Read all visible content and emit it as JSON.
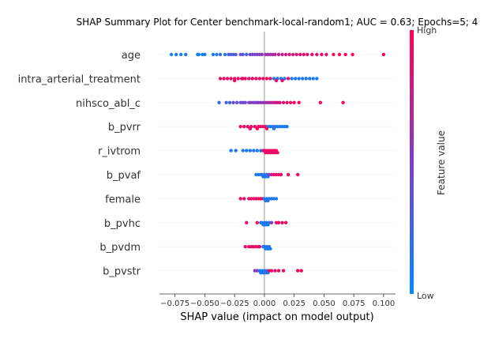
{
  "chart_data": {
    "type": "scatter",
    "title": "SHAP Summary Plot for Center benchmark-local-random1; AUC = 0.63; Epochs=5; 4",
    "xlabel": "SHAP value (impact on model output)",
    "xlim": [
      -0.088,
      0.11
    ],
    "xticks": [
      {
        "v": -0.075,
        "label": "−0.075"
      },
      {
        "v": -0.05,
        "label": "−0.050"
      },
      {
        "v": -0.025,
        "label": "−0.025"
      },
      {
        "v": 0.0,
        "label": "0.000"
      },
      {
        "v": 0.025,
        "label": "0.025"
      },
      {
        "v": 0.05,
        "label": "0.050"
      },
      {
        "v": 0.075,
        "label": "0.075"
      },
      {
        "v": 0.1,
        "label": "0.100"
      }
    ],
    "colorbar": {
      "title": "Feature value",
      "high_label": "High",
      "low_label": "Low",
      "low_color": "#008bfb",
      "high_color": "#ff0052"
    },
    "features": [
      {
        "name": "age",
        "points": [
          [
            -0.078,
            0.05
          ],
          [
            -0.074,
            0.1
          ],
          [
            -0.07,
            0.05
          ],
          [
            -0.066,
            0.1
          ],
          [
            -0.056,
            0.05
          ],
          [
            -0.055,
            0.05
          ],
          [
            -0.052,
            0.1
          ],
          [
            -0.05,
            0.05
          ],
          [
            -0.043,
            0.1
          ],
          [
            -0.04,
            0.1
          ],
          [
            -0.037,
            0.2
          ],
          [
            -0.033,
            0.1
          ],
          [
            -0.03,
            0.35
          ],
          [
            -0.028,
            0.3
          ],
          [
            -0.026,
            0.25
          ],
          [
            -0.024,
            0.4
          ],
          [
            -0.02,
            0.3
          ],
          [
            -0.018,
            0.4
          ],
          [
            -0.015,
            0.25
          ],
          [
            -0.012,
            0.45
          ],
          [
            -0.01,
            0.5
          ],
          [
            -0.008,
            0.4
          ],
          [
            -0.006,
            0.55
          ],
          [
            -0.004,
            0.45
          ],
          [
            -0.002,
            0.6
          ],
          [
            0.001,
            0.55
          ],
          [
            0.003,
            0.7
          ],
          [
            0.005,
            0.6
          ],
          [
            0.007,
            0.65
          ],
          [
            0.009,
            0.75
          ],
          [
            0.012,
            0.7
          ],
          [
            0.015,
            0.8
          ],
          [
            0.018,
            0.75
          ],
          [
            0.021,
            0.85
          ],
          [
            0.024,
            0.8
          ],
          [
            0.027,
            0.85
          ],
          [
            0.03,
            0.9
          ],
          [
            0.033,
            0.85
          ],
          [
            0.036,
            0.9
          ],
          [
            0.04,
            0.95
          ],
          [
            0.044,
            0.9
          ],
          [
            0.048,
            0.95
          ],
          [
            0.052,
            0.9
          ],
          [
            0.058,
            0.95
          ],
          [
            0.063,
            1.0
          ],
          [
            0.068,
            0.95
          ],
          [
            0.074,
            1.0
          ],
          [
            0.1,
            1.0
          ]
        ]
      },
      {
        "name": "intra_arterial_treatment",
        "points": [
          [
            -0.037,
            0.9
          ],
          [
            -0.034,
            0.95
          ],
          [
            -0.031,
            0.9
          ],
          [
            -0.028,
            0.95
          ],
          [
            -0.025,
            0.9
          ],
          [
            -0.022,
            0.95
          ],
          [
            -0.019,
            0.9
          ],
          [
            -0.016,
            0.95
          ],
          [
            -0.013,
            0.9
          ],
          [
            -0.01,
            0.95
          ],
          [
            -0.007,
            0.9
          ],
          [
            -0.004,
            0.95
          ],
          [
            -0.001,
            0.9
          ],
          [
            0.002,
            0.95
          ],
          [
            0.005,
            0.9
          ],
          [
            0.008,
            0.1
          ],
          [
            0.011,
            0.15
          ],
          [
            0.014,
            0.1
          ],
          [
            0.017,
            0.15
          ],
          [
            0.02,
            0.95
          ],
          [
            0.023,
            0.1
          ],
          [
            0.026,
            0.1
          ],
          [
            0.029,
            0.15
          ],
          [
            0.032,
            0.1
          ],
          [
            0.035,
            0.1
          ],
          [
            0.038,
            0.15
          ],
          [
            0.041,
            0.1
          ],
          [
            0.044,
            0.1
          ],
          [
            -0.025,
            0.95
          ],
          [
            -0.018,
            0.9
          ],
          [
            0.015,
            0.9
          ],
          [
            0.01,
            0.9
          ]
        ]
      },
      {
        "name": "nihsco_abl_c",
        "points": [
          [
            -0.038,
            0.2
          ],
          [
            -0.032,
            0.3
          ],
          [
            -0.029,
            0.25
          ],
          [
            -0.026,
            0.4
          ],
          [
            -0.023,
            0.35
          ],
          [
            -0.02,
            0.45
          ],
          [
            -0.018,
            0.5
          ],
          [
            -0.016,
            0.4
          ],
          [
            -0.013,
            0.5
          ],
          [
            -0.011,
            0.55
          ],
          [
            -0.009,
            0.45
          ],
          [
            -0.007,
            0.5
          ],
          [
            -0.005,
            0.6
          ],
          [
            -0.003,
            0.5
          ],
          [
            -0.001,
            0.55
          ],
          [
            0.001,
            0.6
          ],
          [
            0.003,
            0.65
          ],
          [
            0.005,
            0.7
          ],
          [
            0.007,
            0.75
          ],
          [
            0.009,
            0.8
          ],
          [
            0.011,
            0.85
          ],
          [
            0.013,
            0.8
          ],
          [
            0.016,
            0.9
          ],
          [
            0.019,
            0.85
          ],
          [
            0.022,
            0.95
          ],
          [
            0.025,
            0.9
          ],
          [
            0.029,
            0.95
          ],
          [
            0.047,
            1.0
          ],
          [
            0.066,
            1.0
          ]
        ]
      },
      {
        "name": "b_pvrr",
        "points": [
          [
            -0.02,
            0.9
          ],
          [
            -0.017,
            0.95
          ],
          [
            -0.014,
            0.9
          ],
          [
            -0.011,
            0.95
          ],
          [
            -0.008,
            0.9
          ],
          [
            -0.005,
            0.95
          ],
          [
            -0.003,
            0.9
          ],
          [
            -0.001,
            0.95
          ],
          [
            0.001,
            0.9
          ],
          [
            0.003,
            0.1
          ],
          [
            0.005,
            0.15
          ],
          [
            0.007,
            0.1
          ],
          [
            0.009,
            0.1
          ],
          [
            0.011,
            0.15
          ],
          [
            0.013,
            0.1
          ],
          [
            0.015,
            0.1
          ],
          [
            0.017,
            0.1
          ],
          [
            0.019,
            0.15
          ],
          [
            -0.012,
            0.9
          ],
          [
            -0.006,
            0.95
          ],
          [
            0.002,
            0.95
          ],
          [
            0.008,
            0.1
          ]
        ]
      },
      {
        "name": "r_ivtrom",
        "points": [
          [
            -0.028,
            0.1
          ],
          [
            -0.024,
            0.15
          ],
          [
            -0.018,
            0.1
          ],
          [
            -0.015,
            0.15
          ],
          [
            -0.012,
            0.1
          ],
          [
            -0.009,
            0.15
          ],
          [
            -0.006,
            0.1
          ],
          [
            -0.003,
            0.15
          ],
          [
            -0.001,
            0.9
          ],
          [
            0.0,
            0.95
          ],
          [
            0.001,
            0.9
          ],
          [
            0.002,
            0.95
          ],
          [
            0.003,
            0.9
          ],
          [
            0.004,
            0.95
          ],
          [
            0.005,
            0.9
          ],
          [
            0.006,
            0.95
          ],
          [
            0.007,
            0.9
          ],
          [
            0.008,
            0.95
          ],
          [
            0.009,
            0.9
          ],
          [
            0.01,
            0.95
          ],
          [
            0.011,
            0.9
          ]
        ]
      },
      {
        "name": "b_pvaf",
        "points": [
          [
            -0.007,
            0.1
          ],
          [
            -0.005,
            0.15
          ],
          [
            -0.003,
            0.1
          ],
          [
            -0.002,
            0.15
          ],
          [
            -0.001,
            0.1
          ],
          [
            0.0,
            0.15
          ],
          [
            0.001,
            0.1
          ],
          [
            0.002,
            0.15
          ],
          [
            0.003,
            0.1
          ],
          [
            0.004,
            0.5
          ],
          [
            0.006,
            0.8
          ],
          [
            0.008,
            0.9
          ],
          [
            0.01,
            0.9
          ],
          [
            0.012,
            0.95
          ],
          [
            0.014,
            0.9
          ],
          [
            0.02,
            0.95
          ],
          [
            0.028,
            1.0
          ]
        ]
      },
      {
        "name": "female",
        "points": [
          [
            -0.02,
            0.9
          ],
          [
            -0.017,
            0.95
          ],
          [
            -0.013,
            0.9
          ],
          [
            -0.011,
            0.95
          ],
          [
            -0.009,
            0.9
          ],
          [
            -0.007,
            0.95
          ],
          [
            -0.005,
            0.9
          ],
          [
            -0.003,
            0.95
          ],
          [
            -0.001,
            0.9
          ],
          [
            0.0,
            0.1
          ],
          [
            0.001,
            0.15
          ],
          [
            0.002,
            0.1
          ],
          [
            0.003,
            0.15
          ],
          [
            0.004,
            0.1
          ],
          [
            0.006,
            0.15
          ],
          [
            0.008,
            0.1
          ],
          [
            0.01,
            0.1
          ]
        ]
      },
      {
        "name": "b_pvhc",
        "points": [
          [
            -0.015,
            0.9
          ],
          [
            -0.006,
            0.95
          ],
          [
            -0.003,
            0.1
          ],
          [
            -0.002,
            0.15
          ],
          [
            -0.001,
            0.1
          ],
          [
            0.0,
            0.15
          ],
          [
            0.001,
            0.1
          ],
          [
            0.002,
            0.15
          ],
          [
            0.003,
            0.1
          ],
          [
            0.004,
            0.15
          ],
          [
            0.006,
            0.5
          ],
          [
            0.01,
            0.9
          ],
          [
            0.012,
            0.95
          ],
          [
            0.015,
            0.9
          ],
          [
            0.018,
            0.95
          ]
        ]
      },
      {
        "name": "b_pvdm",
        "points": [
          [
            -0.016,
            0.9
          ],
          [
            -0.013,
            0.95
          ],
          [
            -0.011,
            0.9
          ],
          [
            -0.009,
            0.95
          ],
          [
            -0.007,
            0.9
          ],
          [
            -0.005,
            0.95
          ],
          [
            -0.004,
            0.9
          ],
          [
            -0.001,
            0.1
          ],
          [
            0.0,
            0.15
          ],
          [
            0.001,
            0.1
          ],
          [
            0.002,
            0.15
          ],
          [
            0.003,
            0.1
          ],
          [
            0.004,
            0.15
          ],
          [
            0.005,
            0.1
          ]
        ]
      },
      {
        "name": "b_pvstr",
        "points": [
          [
            -0.008,
            0.5
          ],
          [
            -0.006,
            0.6
          ],
          [
            -0.004,
            0.1
          ],
          [
            -0.003,
            0.15
          ],
          [
            -0.002,
            0.1
          ],
          [
            -0.001,
            0.15
          ],
          [
            0.0,
            0.1
          ],
          [
            0.001,
            0.15
          ],
          [
            0.002,
            0.1
          ],
          [
            0.003,
            0.15
          ],
          [
            0.004,
            0.9
          ],
          [
            0.006,
            0.95
          ],
          [
            0.009,
            0.9
          ],
          [
            0.012,
            0.95
          ],
          [
            0.016,
            0.9
          ],
          [
            0.028,
            1.0
          ],
          [
            0.031,
            0.95
          ]
        ]
      }
    ]
  }
}
